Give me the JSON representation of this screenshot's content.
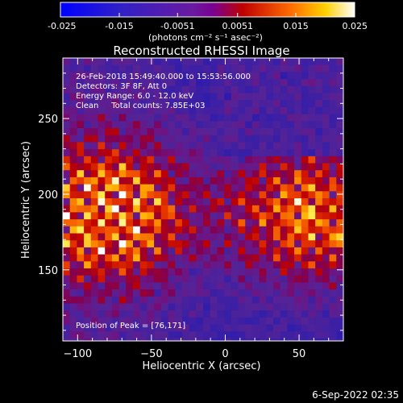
{
  "colorbar": {
    "min": -0.025,
    "max": 0.025,
    "ticks": [
      "-0.025",
      "-0.015",
      "-0.0051",
      "0.0051",
      "0.015",
      "0.025"
    ],
    "tick_values": [
      -0.025,
      -0.015,
      -0.0051,
      0.0051,
      0.015,
      0.025
    ],
    "unit_label": "(photons cm⁻² s⁻¹ asec⁻²)",
    "colors": [
      "#1a00ff",
      "#3a1aa8",
      "#5a2a8a",
      "#7a0088",
      "#b00000",
      "#ff5a00",
      "#ffc000",
      "#ffffff"
    ]
  },
  "chart_data": {
    "type": "heatmap",
    "title": "Reconstructed RHESSI Image",
    "xlabel": "Heliocentric X (arcsec)",
    "ylabel": "Heliocentric Y (arcsec)",
    "xlim": [
      -110,
      80
    ],
    "ylim": [
      103,
      290
    ],
    "xticks": [
      -100,
      -50,
      0,
      50
    ],
    "xtick_labels": [
      "−100",
      "−50",
      "0",
      "50"
    ],
    "yticks": [
      150,
      200,
      250
    ],
    "ytick_labels": [
      "150",
      "200",
      "250"
    ],
    "peak": {
      "x": 76,
      "y": 171
    },
    "annotations": [
      "26-Feb-2018 15:49:40.000 to 15:53:56.000",
      "Detectors: 3F 8F, Att 0",
      "Energy Range: 6.0 - 12.0 keV",
      "Clean     Total counts: 7.85E+03"
    ],
    "peak_label": "Position of Peak = [76,171]"
  },
  "footer": {
    "timestamp": "6-Sep-2022 02:35"
  }
}
